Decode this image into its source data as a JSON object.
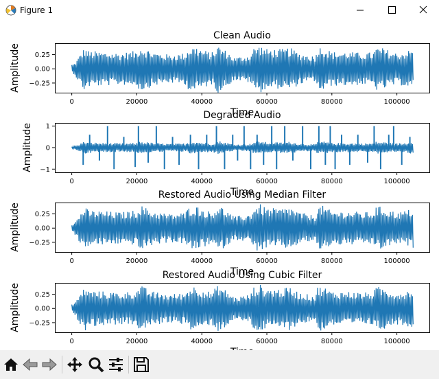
{
  "window": {
    "title": "Figure 1",
    "icon": "matplotlib-icon",
    "controls": [
      "minimize-icon",
      "maximize-icon",
      "close-icon"
    ]
  },
  "toolbar": {
    "buttons": [
      "home-icon",
      "back-arrow-icon",
      "forward-arrow-icon",
      "pan-icon",
      "zoom-icon",
      "subplots-config-icon",
      "save-icon"
    ]
  },
  "colors": {
    "line": "#1f77b4"
  },
  "chart_data": [
    {
      "type": "line",
      "title": "Clean Audio",
      "xlabel": "Time",
      "ylabel": "Amplitude",
      "xlim": [
        -5200,
        110000
      ],
      "ylim": [
        -0.42,
        0.45
      ],
      "xticks": [
        0,
        20000,
        40000,
        60000,
        80000,
        100000
      ],
      "xtick_labels": [
        "0",
        "20000",
        "40000",
        "60000",
        "80000",
        "100000"
      ],
      "yticks": [
        0.25,
        0.0,
        -0.25
      ],
      "ytick_labels": [
        "0.25",
        "0.00",
        "−0.25"
      ],
      "envelope": {
        "x": [
          0,
          1000,
          2000,
          3000,
          4000,
          5000,
          10000,
          15000,
          20000,
          21000,
          22000,
          25000,
          30000,
          35000,
          36000,
          38000,
          40000,
          43000,
          45000,
          48000,
          50000,
          55000,
          56000,
          58000,
          60000,
          65000,
          67000,
          70000,
          75000,
          75500,
          77000,
          80000,
          85000,
          90000,
          93000,
          93500,
          95000,
          100000,
          102000,
          105000
        ],
        "upper": [
          0.08,
          0.1,
          0.2,
          0.3,
          0.38,
          0.32,
          0.3,
          0.28,
          0.32,
          0.42,
          0.38,
          0.3,
          0.25,
          0.28,
          0.38,
          0.4,
          0.35,
          0.28,
          0.42,
          0.3,
          0.2,
          0.25,
          0.38,
          0.42,
          0.35,
          0.35,
          0.38,
          0.28,
          0.22,
          0.38,
          0.4,
          0.3,
          0.3,
          0.28,
          0.3,
          0.38,
          0.38,
          0.28,
          0.3,
          0.35
        ],
        "lower": [
          -0.05,
          -0.12,
          -0.22,
          -0.32,
          -0.4,
          -0.32,
          -0.3,
          -0.28,
          -0.3,
          -0.4,
          -0.38,
          -0.3,
          -0.25,
          -0.28,
          -0.38,
          -0.4,
          -0.35,
          -0.28,
          -0.42,
          -0.3,
          -0.2,
          -0.25,
          -0.38,
          -0.42,
          -0.35,
          -0.35,
          -0.38,
          -0.28,
          -0.22,
          -0.38,
          -0.4,
          -0.3,
          -0.3,
          -0.28,
          -0.3,
          -0.38,
          -0.38,
          -0.28,
          -0.3,
          -0.35
        ]
      },
      "spikes": []
    },
    {
      "type": "line",
      "title": "Degraded Audio",
      "xlabel": "Time",
      "ylabel": "Amplitude",
      "xlim": [
        -5200,
        110000
      ],
      "ylim": [
        -1.15,
        1.15
      ],
      "xticks": [
        0,
        20000,
        40000,
        60000,
        80000,
        100000
      ],
      "xtick_labels": [
        "0",
        "20000",
        "40000",
        "60000",
        "80000",
        "100000"
      ],
      "yticks": [
        1,
        0,
        -1
      ],
      "ytick_labels": [
        "1",
        "0",
        "−1"
      ],
      "envelope": {
        "x": [
          0,
          1000,
          2000,
          3000,
          4000,
          5000,
          10000,
          15000,
          20000,
          21000,
          22000,
          25000,
          30000,
          35000,
          36000,
          38000,
          40000,
          43000,
          45000,
          48000,
          50000,
          55000,
          56000,
          58000,
          60000,
          65000,
          67000,
          70000,
          75000,
          75500,
          77000,
          80000,
          85000,
          90000,
          93000,
          93500,
          95000,
          100000,
          102000,
          105000
        ],
        "upper": [
          0.06,
          0.08,
          0.15,
          0.22,
          0.3,
          0.25,
          0.22,
          0.2,
          0.22,
          0.32,
          0.28,
          0.22,
          0.18,
          0.2,
          0.28,
          0.3,
          0.25,
          0.2,
          0.32,
          0.22,
          0.15,
          0.18,
          0.28,
          0.32,
          0.25,
          0.25,
          0.28,
          0.2,
          0.15,
          0.28,
          0.3,
          0.22,
          0.22,
          0.2,
          0.22,
          0.28,
          0.28,
          0.2,
          0.22,
          0.3
        ],
        "lower": [
          -0.04,
          -0.08,
          -0.15,
          -0.22,
          -0.3,
          -0.25,
          -0.22,
          -0.2,
          -0.22,
          -0.32,
          -0.28,
          -0.22,
          -0.18,
          -0.2,
          -0.28,
          -0.3,
          -0.25,
          -0.2,
          -0.32,
          -0.22,
          -0.15,
          -0.18,
          -0.28,
          -0.32,
          -0.25,
          -0.25,
          -0.28,
          -0.2,
          -0.15,
          -0.28,
          -0.3,
          -0.22,
          -0.22,
          -0.2,
          -0.22,
          -0.28,
          -0.28,
          -0.2,
          -0.22,
          -0.3
        ]
      },
      "spikes": [
        {
          "x": 3500,
          "y": -0.8
        },
        {
          "x": 5500,
          "y": 0.6
        },
        {
          "x": 8500,
          "y": -0.6
        },
        {
          "x": 11000,
          "y": 1.0
        },
        {
          "x": 13000,
          "y": -1.0
        },
        {
          "x": 16000,
          "y": 0.5
        },
        {
          "x": 19500,
          "y": -0.9
        },
        {
          "x": 20500,
          "y": 1.0
        },
        {
          "x": 23500,
          "y": -0.7
        },
        {
          "x": 26000,
          "y": 1.0
        },
        {
          "x": 28500,
          "y": -1.0
        },
        {
          "x": 31000,
          "y": 0.5
        },
        {
          "x": 33000,
          "y": -0.8
        },
        {
          "x": 36500,
          "y": 0.6
        },
        {
          "x": 39000,
          "y": -1.0
        },
        {
          "x": 41500,
          "y": 0.6
        },
        {
          "x": 44500,
          "y": 1.0
        },
        {
          "x": 47000,
          "y": -1.0
        },
        {
          "x": 49500,
          "y": 0.6
        },
        {
          "x": 51000,
          "y": -0.6
        },
        {
          "x": 53000,
          "y": 1.0
        },
        {
          "x": 55000,
          "y": -1.0
        },
        {
          "x": 57000,
          "y": 0.6
        },
        {
          "x": 59000,
          "y": -0.8
        },
        {
          "x": 61500,
          "y": 1.0
        },
        {
          "x": 63000,
          "y": -1.0
        },
        {
          "x": 65500,
          "y": 1.0
        },
        {
          "x": 68000,
          "y": -0.6
        },
        {
          "x": 71000,
          "y": 1.0
        },
        {
          "x": 73500,
          "y": -1.0
        },
        {
          "x": 76000,
          "y": 1.0
        },
        {
          "x": 78000,
          "y": -0.8
        },
        {
          "x": 79500,
          "y": 1.0
        },
        {
          "x": 81000,
          "y": -1.0
        },
        {
          "x": 83000,
          "y": 0.6
        },
        {
          "x": 85500,
          "y": -0.8
        },
        {
          "x": 88000,
          "y": 0.6
        },
        {
          "x": 91000,
          "y": -0.7
        },
        {
          "x": 93000,
          "y": 1.0
        },
        {
          "x": 95000,
          "y": -1.0
        },
        {
          "x": 97500,
          "y": 0.6
        },
        {
          "x": 99000,
          "y": 1.0
        },
        {
          "x": 101500,
          "y": -0.8
        },
        {
          "x": 104000,
          "y": 0.5
        }
      ]
    },
    {
      "type": "line",
      "title": "Restored Audio Using Median Filter",
      "xlabel": "Time",
      "ylabel": "Amplitude",
      "xlim": [
        -5200,
        110000
      ],
      "ylim": [
        -0.42,
        0.45
      ],
      "xticks": [
        0,
        20000,
        40000,
        60000,
        80000,
        100000
      ],
      "xtick_labels": [
        "0",
        "20000",
        "40000",
        "60000",
        "80000",
        "100000"
      ],
      "yticks": [
        0.25,
        0.0,
        -0.25
      ],
      "ytick_labels": [
        "0.25",
        "0.00",
        "−0.25"
      ],
      "envelope": {
        "x": [
          0,
          1000,
          2000,
          3000,
          4000,
          5000,
          10000,
          15000,
          20000,
          21000,
          22000,
          25000,
          30000,
          35000,
          36000,
          38000,
          40000,
          43000,
          45000,
          48000,
          50000,
          55000,
          56000,
          58000,
          60000,
          65000,
          67000,
          70000,
          75000,
          75500,
          77000,
          80000,
          85000,
          90000,
          93000,
          93500,
          95000,
          100000,
          102000,
          105000
        ],
        "upper": [
          0.08,
          0.1,
          0.2,
          0.3,
          0.38,
          0.32,
          0.3,
          0.28,
          0.32,
          0.42,
          0.38,
          0.3,
          0.25,
          0.28,
          0.38,
          0.4,
          0.35,
          0.28,
          0.42,
          0.3,
          0.2,
          0.25,
          0.38,
          0.42,
          0.35,
          0.35,
          0.38,
          0.28,
          0.22,
          0.38,
          0.4,
          0.3,
          0.3,
          0.28,
          0.3,
          0.38,
          0.38,
          0.28,
          0.3,
          0.35
        ],
        "lower": [
          -0.05,
          -0.12,
          -0.22,
          -0.32,
          -0.4,
          -0.32,
          -0.3,
          -0.28,
          -0.3,
          -0.4,
          -0.38,
          -0.3,
          -0.25,
          -0.28,
          -0.38,
          -0.4,
          -0.35,
          -0.28,
          -0.42,
          -0.3,
          -0.2,
          -0.25,
          -0.38,
          -0.42,
          -0.35,
          -0.35,
          -0.38,
          -0.28,
          -0.22,
          -0.38,
          -0.4,
          -0.3,
          -0.3,
          -0.28,
          -0.3,
          -0.38,
          -0.38,
          -0.28,
          -0.3,
          -0.35
        ]
      },
      "spikes": []
    },
    {
      "type": "line",
      "title": "Restored Audio Using Cubic Filter",
      "xlabel": "Time",
      "ylabel": "Amplitude",
      "xlim": [
        -5200,
        110000
      ],
      "ylim": [
        -0.42,
        0.45
      ],
      "xticks": [
        0,
        20000,
        40000,
        60000,
        80000,
        100000
      ],
      "xtick_labels": [
        "0",
        "20000",
        "40000",
        "60000",
        "80000",
        "100000"
      ],
      "yticks": [
        0.25,
        0.0,
        -0.25
      ],
      "ytick_labels": [
        "0.25",
        "0.00",
        "−0.25"
      ],
      "envelope": {
        "x": [
          0,
          1000,
          2000,
          3000,
          4000,
          5000,
          10000,
          15000,
          20000,
          21000,
          22000,
          25000,
          30000,
          35000,
          36000,
          38000,
          40000,
          43000,
          45000,
          48000,
          50000,
          55000,
          56000,
          58000,
          60000,
          65000,
          67000,
          70000,
          75000,
          75500,
          77000,
          80000,
          85000,
          90000,
          93000,
          93500,
          95000,
          100000,
          102000,
          105000
        ],
        "upper": [
          0.08,
          0.1,
          0.2,
          0.3,
          0.38,
          0.32,
          0.3,
          0.28,
          0.32,
          0.42,
          0.38,
          0.3,
          0.25,
          0.28,
          0.38,
          0.4,
          0.35,
          0.28,
          0.42,
          0.3,
          0.2,
          0.25,
          0.38,
          0.42,
          0.35,
          0.35,
          0.38,
          0.28,
          0.22,
          0.38,
          0.4,
          0.3,
          0.3,
          0.28,
          0.3,
          0.38,
          0.38,
          0.28,
          0.3,
          0.35
        ],
        "lower": [
          -0.05,
          -0.12,
          -0.22,
          -0.32,
          -0.4,
          -0.32,
          -0.3,
          -0.28,
          -0.3,
          -0.4,
          -0.38,
          -0.3,
          -0.25,
          -0.28,
          -0.38,
          -0.4,
          -0.35,
          -0.28,
          -0.42,
          -0.3,
          -0.2,
          -0.25,
          -0.38,
          -0.42,
          -0.35,
          -0.35,
          -0.38,
          -0.28,
          -0.22,
          -0.38,
          -0.4,
          -0.3,
          -0.3,
          -0.28,
          -0.3,
          -0.38,
          -0.38,
          -0.28,
          -0.3,
          -0.35
        ]
      },
      "spikes": []
    }
  ]
}
